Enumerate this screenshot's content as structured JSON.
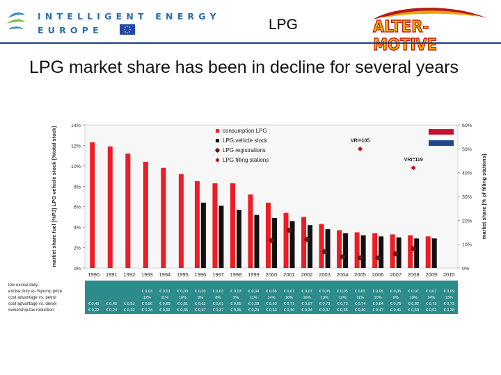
{
  "header": {
    "ie_line1": "INTELLIGENT ENERGY",
    "ie_line2": "EUROPE",
    "slide_title": "LPG",
    "partner_logo_text": "ALTER-MOTIVE"
  },
  "headline": "LPG market share has been in decline for several years",
  "colors": {
    "accent_blue": "#2a6ea6",
    "bar_red": "#ee1c25",
    "bar_black": "#111111",
    "table_teal": "#2e8b8b"
  },
  "chart_data": {
    "type": "bar",
    "title": "",
    "ylabel": "market share fuel [%PJ] LPG vehicle stock [%total stock]",
    "y2label": "market share [% of filling stations]",
    "ylim": [
      0,
      14
    ],
    "y2lim": [
      0,
      60
    ],
    "yticks": [
      "0%",
      "2%",
      "4%",
      "6%",
      "8%",
      "10%",
      "12%",
      "14%"
    ],
    "y2ticks": [
      "0%",
      "10%",
      "20%",
      "30%",
      "40%",
      "50%",
      "60%"
    ],
    "categories": [
      "1990",
      "1991",
      "1992",
      "1993",
      "1994",
      "1995",
      "1996",
      "1997",
      "1998",
      "1999",
      "2000",
      "2001",
      "2002",
      "2003",
      "2004",
      "2005",
      "2006",
      "2007",
      "2008",
      "2009",
      "2010"
    ],
    "series": [
      {
        "name": "consumption LPG",
        "kind": "bar",
        "values": [
          12.3,
          11.9,
          11.2,
          10.4,
          9.8,
          9.2,
          8.5,
          8.3,
          8.3,
          7.2,
          6.4,
          5.4,
          5.0,
          4.3,
          3.7,
          3.5,
          3.4,
          3.3,
          3.2,
          3.1,
          null
        ]
      },
      {
        "name": "LPG vehicle stock",
        "kind": "bar",
        "values": [
          null,
          null,
          null,
          null,
          null,
          null,
          6.4,
          6.1,
          5.7,
          5.2,
          4.9,
          4.6,
          4.2,
          3.8,
          3.4,
          3.2,
          3.1,
          3.0,
          2.9,
          2.9,
          null
        ]
      },
      {
        "name": "LPG registrations",
        "kind": "marker",
        "values": [
          null,
          null,
          null,
          null,
          null,
          null,
          null,
          null,
          null,
          null,
          2.7,
          3.7,
          2.8,
          1.6,
          1.1,
          1.0,
          1.0,
          1.4,
          1.9,
          null,
          null
        ]
      },
      {
        "name": "LPG filling stations",
        "kind": "marker",
        "axis": "right",
        "values": [
          null,
          null,
          null,
          null,
          null,
          null,
          null,
          null,
          null,
          null,
          null,
          null,
          null,
          null,
          null,
          50,
          null,
          null,
          42,
          null,
          null
        ]
      }
    ],
    "annotations": [
      {
        "text": "VRI=105",
        "category": "2005"
      },
      {
        "text": "VRI=119",
        "category": "2008"
      }
    ],
    "legend": "top-left",
    "table": {
      "rows": [
        {
          "label": "low excise duty",
          "cells": [
            "",
            "",
            "",
            "",
            "",
            "",
            "",
            "",
            "",
            "",
            "",
            "",
            "",
            "",
            "",
            "",
            "",
            "",
            "",
            "",
            ""
          ]
        },
        {
          "label": "excise duty as %pump price",
          "cells": [
            "",
            "",
            "",
            "€ 0,03",
            "€ 0,03",
            "€ 0,03",
            "€ 0,03",
            "€ 0,03",
            "€ 0,03",
            "€ 0,04",
            "€ 0,06",
            "€ 0,07",
            "€ 0,07",
            "€ 0,05",
            "€ 0,05",
            "€ 0,05",
            "€ 0,05",
            "€ 0,05",
            "€ 0,07",
            "€ 0,07",
            "€ 0,09"
          ]
        },
        {
          "label": "cost advantage vs. petrol",
          "cells": [
            "",
            "",
            "",
            "12%",
            "11%",
            "10%",
            "9%",
            "8%",
            "9%",
            "11%",
            "14%",
            "16%",
            "16%",
            "13%",
            "12%",
            "11%",
            "10%",
            "9%",
            "10%",
            "14%",
            "13%"
          ]
        },
        {
          "label": "cost advantage vs. diesel",
          "cells": [
            "€ 0,45",
            "€ 0,45",
            "€ 0,53",
            "€ 0,56",
            "€ 0,60",
            "€ 0,61",
            "€ 0,62",
            "€ 0,61",
            "€ 0,65",
            "€ 0,59",
            "€ 0,60",
            "€ 0,71",
            "€ 0,67",
            "€ 0,73",
            "€ 0,72",
            "€ 0,74",
            "€ 0,84",
            "€ 0,75",
            "€ 0,82",
            "€ 0,75",
            "€ 0,73"
          ]
        },
        {
          "label": "ownership tax reduction",
          "cells": [
            "€ 0,22",
            "€ 0,24",
            "€ 0,23",
            "€ 0,34",
            "€ 0,36",
            "€ 0,35",
            "€ 0,37",
            "€ 0,37",
            "€ 0,35",
            "€ 0,29",
            "€ 0,33",
            "€ 0,40",
            "€ 0,34",
            "€ 0,37",
            "€ 0,36",
            "€ 0,40",
            "€ 0,47",
            "€ 0,41",
            "€ 0,50",
            "€ 0,52",
            "€ 0,38"
          ]
        }
      ]
    }
  }
}
